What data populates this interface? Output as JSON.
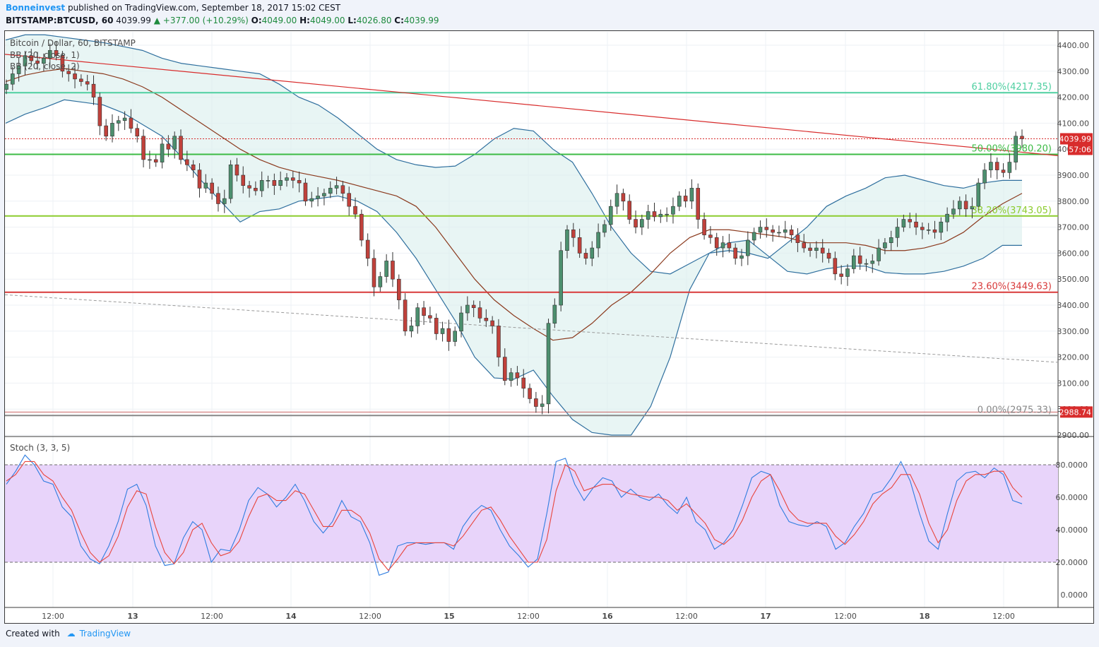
{
  "header": {
    "author": "Bonneinvest",
    "published": "published on TradingView.com, September 18, 2017 15:02 CEST",
    "symbol": "BITSTAMP:BTCUSD, 60",
    "price": "4039.99",
    "change": "+377.00 (+10.29%)",
    "ohlc": {
      "o_label": "O:",
      "o": "4049.00",
      "h_label": "H:",
      "h": "4049.00",
      "l_label": "L:",
      "l": "4026.80",
      "c_label": "C:",
      "c": "4039.99"
    }
  },
  "legend": {
    "main_title": "Bitcoin / Dollar, 60, BITSTAMP",
    "bb1": "BB (20, close, 1)",
    "bb2": "BB (20, close, 2)",
    "stoch": "Stoch (3, 3, 5)"
  },
  "footer": {
    "created": "Created with",
    "brand": "TradingView"
  },
  "colors": {
    "up": "#4c8f6e",
    "down": "#c0413b",
    "bb_band": "#2f6f9e",
    "bb_mid": "#8b3a1e",
    "stoch_k": "#2f7de0",
    "stoch_d": "#e8453c",
    "stoch_bg": "#e8d4fa",
    "fib_618": "#4ecfa0",
    "fib_50": "#3cbb44",
    "fib_382": "#8ccc2e",
    "fib_236": "#d83a3a",
    "fib_0": "#888888",
    "trend": "#d82c2c",
    "price_tag": "#d82c2c"
  },
  "chart_data": [
    {
      "type": "candlestick",
      "title": "Bitcoin / Dollar, 60, BITSTAMP",
      "ylim": [
        2880,
        4480
      ],
      "y_ticks": [
        "4400.00",
        "4300.00",
        "4200.00",
        "4100.00",
        "4000.00",
        "3900.00",
        "3800.00",
        "3700.00",
        "3600.00",
        "3500.00",
        "3400.00",
        "3300.00",
        "3200.00",
        "3100.00",
        "3000.00",
        "2900.00"
      ],
      "x_ticks": [
        "12:00",
        "13",
        "12:00",
        "14",
        "12:00",
        "15",
        "12:00",
        "16",
        "12:00",
        "17",
        "12:00",
        "18",
        "12:00"
      ],
      "current_price": "4039.99",
      "countdown": "57:06",
      "low_marker": "2988.74",
      "fib_levels": [
        {
          "label": "61.80%(4217.35)",
          "value": 4217.35
        },
        {
          "label": "50.00%(3980.20)",
          "value": 3980.2
        },
        {
          "label": "38.20%(3743.05)",
          "value": 3743.05
        },
        {
          "label": "23.60%(3449.63)",
          "value": 3449.63
        },
        {
          "label": "0.00%(2975.33)",
          "value": 2975.33
        }
      ],
      "close": [
        4250,
        4290,
        4320,
        4360,
        4340,
        4330,
        4350,
        4380,
        4360,
        4300,
        4290,
        4270,
        4260,
        4250,
        4200,
        4090,
        4050,
        4100,
        4110,
        4120,
        4080,
        4050,
        3960,
        3960,
        3950,
        4020,
        4000,
        4050,
        3960,
        3940,
        3920,
        3850,
        3870,
        3830,
        3790,
        3810,
        3940,
        3900,
        3860,
        3850,
        3840,
        3880,
        3880,
        3860,
        3880,
        3890,
        3880,
        3870,
        3800,
        3810,
        3820,
        3830,
        3850,
        3860,
        3830,
        3780,
        3750,
        3650,
        3580,
        3470,
        3510,
        3570,
        3500,
        3420,
        3300,
        3320,
        3390,
        3360,
        3350,
        3290,
        3310,
        3260,
        3300,
        3370,
        3400,
        3390,
        3350,
        3340,
        3320,
        3200,
        3110,
        3140,
        3120,
        3080,
        3040,
        3010,
        3020,
        3330,
        3400,
        3610,
        3690,
        3660,
        3600,
        3580,
        3620,
        3680,
        3710,
        3780,
        3830,
        3800,
        3730,
        3700,
        3730,
        3760,
        3740,
        3750,
        3750,
        3780,
        3820,
        3800,
        3850,
        3730,
        3670,
        3660,
        3620,
        3640,
        3620,
        3580,
        3590,
        3650,
        3680,
        3700,
        3690,
        3680,
        3680,
        3690,
        3670,
        3640,
        3620,
        3610,
        3620,
        3600,
        3580,
        3520,
        3510,
        3540,
        3590,
        3560,
        3560,
        3570,
        3620,
        3640,
        3660,
        3700,
        3730,
        3720,
        3700,
        3690,
        3690,
        3680,
        3720,
        3750,
        3770,
        3800,
        3770,
        3780,
        3870,
        3920,
        3950,
        3920,
        3910,
        3950,
        4050,
        4039.99
      ],
      "bb_upper": [
        4420,
        4440,
        4440,
        4430,
        4420,
        4410,
        4395,
        4380,
        4350,
        4330,
        4320,
        4310,
        4300,
        4290,
        4250,
        4200,
        4170,
        4120,
        4060,
        4000,
        3960,
        3940,
        3930,
        3935,
        3980,
        4040,
        4080,
        4070,
        4000,
        3950,
        3830,
        3700,
        3600,
        3530,
        3520,
        3560,
        3600,
        3610,
        3600,
        3580,
        3640,
        3700,
        3780,
        3820,
        3850,
        3890,
        3900,
        3880,
        3860,
        3850,
        3870,
        3880,
        3880
      ],
      "bb_middle": [
        4260,
        4285,
        4300,
        4310,
        4300,
        4290,
        4270,
        4240,
        4200,
        4150,
        4100,
        4050,
        4000,
        3960,
        3930,
        3910,
        3895,
        3880,
        3860,
        3840,
        3820,
        3780,
        3700,
        3600,
        3500,
        3420,
        3360,
        3310,
        3265,
        3275,
        3330,
        3400,
        3450,
        3520,
        3600,
        3660,
        3690,
        3690,
        3680,
        3670,
        3660,
        3640,
        3640,
        3640,
        3630,
        3610,
        3610,
        3620,
        3640,
        3680,
        3740,
        3790,
        3830
      ],
      "bb_lower": [
        4100,
        4135,
        4160,
        4190,
        4180,
        4170,
        4140,
        4095,
        4050,
        3970,
        3880,
        3800,
        3720,
        3760,
        3770,
        3800,
        3810,
        3820,
        3800,
        3760,
        3680,
        3580,
        3460,
        3340,
        3200,
        3120,
        3115,
        3150,
        3050,
        2960,
        2910,
        2900,
        2900,
        3010,
        3200,
        3460,
        3600,
        3640,
        3650,
        3590,
        3530,
        3520,
        3540,
        3550,
        3550,
        3525,
        3520,
        3520,
        3530,
        3550,
        3580,
        3630,
        3630
      ],
      "trend_line": [
        [
          0,
          4365
        ],
        [
          146,
          3975
        ]
      ],
      "dashed_line": [
        [
          0,
          3440
        ],
        [
          146,
          3180
        ]
      ]
    },
    {
      "type": "line",
      "title": "Stoch (3, 3, 5)",
      "ylim": [
        -8,
        90
      ],
      "y_ticks": [
        "80.0000",
        "60.0000",
        "40.0000",
        "20.0000",
        "0.0000"
      ],
      "bands": [
        20,
        80
      ],
      "series": [
        {
          "name": "%K",
          "values": [
            68,
            76,
            86,
            80,
            70,
            68,
            54,
            48,
            30,
            22,
            19,
            30,
            45,
            65,
            68,
            55,
            30,
            18,
            19,
            35,
            45,
            40,
            20,
            28,
            27,
            40,
            58,
            66,
            62,
            54,
            60,
            68,
            58,
            45,
            38,
            45,
            58,
            48,
            45,
            32,
            12,
            14,
            30,
            32,
            32,
            31,
            32,
            32,
            28,
            42,
            50,
            55,
            52,
            40,
            30,
            24,
            17,
            22,
            50,
            82,
            84,
            68,
            58,
            66,
            72,
            70,
            60,
            65,
            60,
            58,
            62,
            55,
            50,
            60,
            45,
            40,
            28,
            32,
            40,
            55,
            72,
            76,
            74,
            55,
            45,
            43,
            42,
            45,
            42,
            28,
            32,
            42,
            50,
            62,
            64,
            72,
            82,
            70,
            50,
            33,
            28,
            50,
            70,
            75,
            76,
            72,
            78,
            74,
            58,
            56
          ]
        },
        {
          "name": "%D",
          "values": [
            70,
            74,
            82,
            82,
            74,
            70,
            60,
            52,
            38,
            26,
            20,
            24,
            36,
            54,
            64,
            62,
            42,
            26,
            19,
            26,
            40,
            44,
            32,
            24,
            26,
            33,
            48,
            60,
            62,
            58,
            58,
            64,
            62,
            52,
            42,
            42,
            52,
            52,
            48,
            38,
            22,
            15,
            22,
            30,
            32,
            32,
            32,
            32,
            30,
            36,
            44,
            52,
            54,
            46,
            36,
            28,
            20,
            20,
            34,
            64,
            80,
            76,
            64,
            66,
            68,
            68,
            64,
            62,
            61,
            60,
            60,
            58,
            52,
            56,
            50,
            44,
            34,
            31,
            36,
            46,
            60,
            70,
            74,
            64,
            52,
            46,
            44,
            44,
            44,
            36,
            31,
            37,
            45,
            56,
            62,
            66,
            74,
            74,
            62,
            44,
            32,
            40,
            58,
            70,
            74,
            74,
            76,
            76,
            66,
            60
          ]
        }
      ]
    }
  ]
}
